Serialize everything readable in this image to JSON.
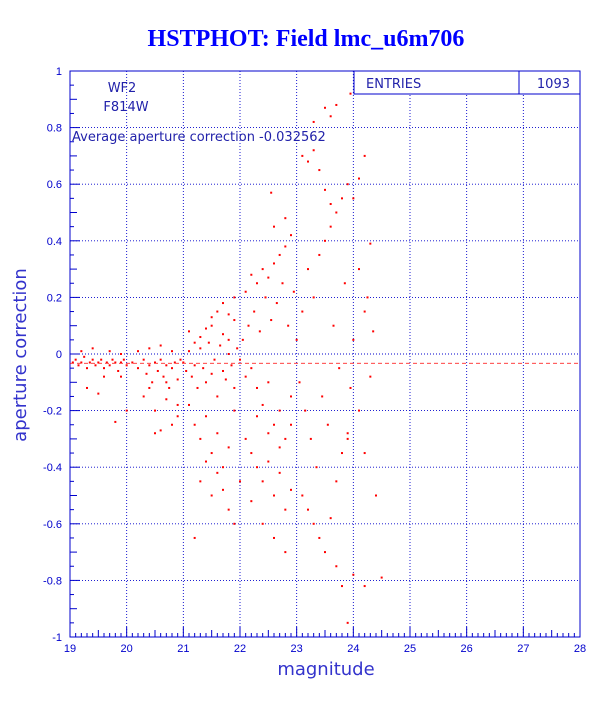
{
  "chart_data": {
    "type": "scatter",
    "title": "HSTPHOT: Field lmc_u6m706",
    "xlabel": "magnitude",
    "ylabel": "aperture correction",
    "xlim": [
      19,
      28
    ],
    "ylim": [
      -1,
      1
    ],
    "x_ticks": [
      "19",
      "20",
      "21",
      "22",
      "23",
      "24",
      "25",
      "26",
      "27",
      "28"
    ],
    "y_ticks": [
      "-1",
      "-0.8",
      "-0.6",
      "-0.4",
      "-0.2",
      "0",
      "0.2",
      "0.4",
      "0.6",
      "0.8",
      "1"
    ],
    "grid": true,
    "point_color": "#ff0000",
    "axis_color": "#0000cc",
    "title_color": "#0000ff",
    "average_line": -0.032562,
    "annotations": {
      "camera": "WF2",
      "filter": "F814W",
      "average_text": "Average aperture correction -0.032562"
    },
    "stats_box": {
      "label": "ENTRIES",
      "value": "1093"
    },
    "points": [
      [
        19.05,
        -0.03
      ],
      [
        19.1,
        -0.02
      ],
      [
        19.15,
        -0.04
      ],
      [
        19.2,
        -0.03
      ],
      [
        19.25,
        -0.01
      ],
      [
        19.3,
        -0.05
      ],
      [
        19.35,
        -0.03
      ],
      [
        19.4,
        -0.02
      ],
      [
        19.45,
        -0.04
      ],
      [
        19.5,
        -0.03
      ],
      [
        19.55,
        -0.02
      ],
      [
        19.6,
        -0.05
      ],
      [
        19.65,
        -0.03
      ],
      [
        19.7,
        -0.04
      ],
      [
        19.75,
        -0.02
      ],
      [
        19.8,
        -0.03
      ],
      [
        19.85,
        -0.06
      ],
      [
        19.9,
        -0.03
      ],
      [
        19.95,
        -0.02
      ],
      [
        20.0,
        -0.04
      ],
      [
        19.3,
        -0.12
      ],
      [
        19.5,
        -0.14
      ],
      [
        19.6,
        -0.08
      ],
      [
        19.8,
        -0.24
      ],
      [
        19.9,
        -0.08
      ],
      [
        20.0,
        -0.2
      ],
      [
        19.2,
        0.01
      ],
      [
        19.4,
        0.02
      ],
      [
        19.7,
        0.01
      ],
      [
        19.9,
        0.0
      ],
      [
        20.1,
        -0.03
      ],
      [
        20.2,
        -0.05
      ],
      [
        20.3,
        -0.02
      ],
      [
        20.35,
        -0.07
      ],
      [
        20.4,
        -0.04
      ],
      [
        20.45,
        -0.1
      ],
      [
        20.5,
        -0.03
      ],
      [
        20.55,
        -0.06
      ],
      [
        20.6,
        -0.02
      ],
      [
        20.65,
        -0.08
      ],
      [
        20.7,
        -0.04
      ],
      [
        20.75,
        -0.12
      ],
      [
        20.8,
        -0.05
      ],
      [
        20.85,
        -0.03
      ],
      [
        20.9,
        -0.09
      ],
      [
        20.95,
        -0.02
      ],
      [
        20.2,
        0.01
      ],
      [
        20.4,
        0.02
      ],
      [
        20.6,
        0.03
      ],
      [
        20.8,
        0.01
      ],
      [
        20.3,
        -0.15
      ],
      [
        20.5,
        -0.2
      ],
      [
        20.6,
        -0.27
      ],
      [
        20.7,
        -0.16
      ],
      [
        20.8,
        -0.25
      ],
      [
        20.9,
        -0.22
      ],
      [
        20.5,
        -0.28
      ],
      [
        20.4,
        -0.12
      ],
      [
        20.7,
        -0.1
      ],
      [
        20.9,
        -0.18
      ],
      [
        21.0,
        -0.03
      ],
      [
        21.05,
        -0.06
      ],
      [
        21.1,
        0.01
      ],
      [
        21.15,
        -0.08
      ],
      [
        21.2,
        -0.04
      ],
      [
        21.25,
        -0.12
      ],
      [
        21.3,
        0.02
      ],
      [
        21.35,
        -0.05
      ],
      [
        21.4,
        -0.1
      ],
      [
        21.45,
        0.04
      ],
      [
        21.5,
        -0.07
      ],
      [
        21.55,
        -0.02
      ],
      [
        21.6,
        -0.15
      ],
      [
        21.65,
        0.03
      ],
      [
        21.7,
        -0.06
      ],
      [
        21.75,
        -0.09
      ],
      [
        21.8,
        0.0
      ],
      [
        21.85,
        -0.04
      ],
      [
        21.9,
        -0.12
      ],
      [
        21.95,
        0.02
      ],
      [
        21.1,
        -0.18
      ],
      [
        21.2,
        -0.25
      ],
      [
        21.3,
        -0.3
      ],
      [
        21.4,
        -0.22
      ],
      [
        21.5,
        -0.35
      ],
      [
        21.6,
        -0.28
      ],
      [
        21.7,
        -0.4
      ],
      [
        21.8,
        -0.33
      ],
      [
        21.9,
        -0.2
      ],
      [
        21.3,
        -0.45
      ],
      [
        21.5,
        -0.5
      ],
      [
        21.7,
        -0.48
      ],
      [
        21.8,
        -0.55
      ],
      [
        21.9,
        -0.6
      ],
      [
        21.2,
        -0.65
      ],
      [
        21.6,
        -0.42
      ],
      [
        21.4,
        -0.38
      ],
      [
        21.1,
        0.08
      ],
      [
        21.3,
        0.06
      ],
      [
        21.5,
        0.1
      ],
      [
        21.7,
        0.07
      ],
      [
        21.9,
        0.12
      ],
      [
        21.6,
        0.15
      ],
      [
        21.8,
        0.05
      ],
      [
        21.4,
        0.09
      ],
      [
        21.2,
        0.04
      ],
      [
        21.7,
        0.18
      ],
      [
        21.9,
        0.2
      ],
      [
        21.8,
        0.14
      ],
      [
        21.5,
        0.13
      ],
      [
        22.0,
        -0.02
      ],
      [
        22.05,
        0.05
      ],
      [
        22.1,
        -0.08
      ],
      [
        22.15,
        0.1
      ],
      [
        22.2,
        -0.05
      ],
      [
        22.25,
        0.15
      ],
      [
        22.3,
        -0.12
      ],
      [
        22.35,
        0.08
      ],
      [
        22.4,
        -0.18
      ],
      [
        22.45,
        0.2
      ],
      [
        22.5,
        -0.1
      ],
      [
        22.55,
        0.12
      ],
      [
        22.6,
        -0.25
      ],
      [
        22.65,
        0.18
      ],
      [
        22.7,
        -0.2
      ],
      [
        22.75,
        0.25
      ],
      [
        22.8,
        -0.3
      ],
      [
        22.85,
        0.1
      ],
      [
        22.9,
        -0.15
      ],
      [
        22.95,
        0.22
      ],
      [
        22.1,
        0.22
      ],
      [
        22.2,
        0.28
      ],
      [
        22.3,
        0.25
      ],
      [
        22.4,
        0.3
      ],
      [
        22.5,
        0.27
      ],
      [
        22.6,
        0.32
      ],
      [
        22.7,
        0.35
      ],
      [
        22.8,
        0.38
      ],
      [
        22.9,
        0.42
      ],
      [
        22.6,
        0.45
      ],
      [
        22.2,
        -0.35
      ],
      [
        22.3,
        -0.4
      ],
      [
        22.4,
        -0.45
      ],
      [
        22.5,
        -0.38
      ],
      [
        22.6,
        -0.5
      ],
      [
        22.7,
        -0.42
      ],
      [
        22.8,
        -0.55
      ],
      [
        22.9,
        -0.48
      ],
      [
        22.4,
        -0.6
      ],
      [
        22.6,
        -0.65
      ],
      [
        22.8,
        -0.7
      ],
      [
        22.5,
        -0.28
      ],
      [
        22.3,
        -0.22
      ],
      [
        22.1,
        -0.3
      ],
      [
        22.7,
        -0.33
      ],
      [
        22.9,
        -0.25
      ],
      [
        22.0,
        -0.45
      ],
      [
        22.2,
        -0.52
      ],
      [
        22.8,
        0.48
      ],
      [
        22.55,
        0.57
      ],
      [
        23.0,
        0.05
      ],
      [
        23.05,
        -0.1
      ],
      [
        23.1,
        0.15
      ],
      [
        23.15,
        -0.2
      ],
      [
        23.2,
        0.3
      ],
      [
        23.25,
        -0.3
      ],
      [
        23.3,
        0.2
      ],
      [
        23.35,
        -0.4
      ],
      [
        23.4,
        0.35
      ],
      [
        23.45,
        -0.15
      ],
      [
        23.5,
        0.4
      ],
      [
        23.55,
        -0.25
      ],
      [
        23.6,
        0.45
      ],
      [
        23.65,
        0.1
      ],
      [
        23.7,
        0.5
      ],
      [
        23.75,
        -0.05
      ],
      [
        23.8,
        0.55
      ],
      [
        23.85,
        0.25
      ],
      [
        23.9,
        0.6
      ],
      [
        23.95,
        -0.12
      ],
      [
        23.1,
        0.7
      ],
      [
        23.2,
        0.68
      ],
      [
        23.3,
        0.72
      ],
      [
        23.4,
        0.65
      ],
      [
        23.5,
        0.58
      ],
      [
        23.6,
        0.53
      ],
      [
        23.3,
        0.82
      ],
      [
        23.6,
        0.84
      ],
      [
        23.7,
        0.88
      ],
      [
        23.5,
        0.87
      ],
      [
        23.1,
        -0.5
      ],
      [
        23.2,
        -0.55
      ],
      [
        23.3,
        -0.6
      ],
      [
        23.4,
        -0.65
      ],
      [
        23.5,
        -0.7
      ],
      [
        23.6,
        -0.58
      ],
      [
        23.7,
        -0.45
      ],
      [
        23.8,
        -0.35
      ],
      [
        23.9,
        -0.3
      ],
      [
        23.9,
        -0.28
      ],
      [
        24.0,
        0.55
      ],
      [
        24.2,
        0.7
      ],
      [
        24.3,
        0.39
      ],
      [
        24.35,
        0.08
      ],
      [
        24.3,
        -0.08
      ],
      [
        24.4,
        -0.5
      ],
      [
        24.0,
        -0.78
      ],
      [
        24.2,
        -0.82
      ],
      [
        24.5,
        -0.79
      ],
      [
        23.9,
        -0.95
      ],
      [
        23.8,
        -0.82
      ],
      [
        23.7,
        -0.75
      ],
      [
        24.1,
        -0.2
      ],
      [
        24.0,
        0.05
      ],
      [
        24.1,
        0.3
      ],
      [
        24.2,
        0.15
      ],
      [
        23.95,
        0.92
      ],
      [
        24.1,
        0.62
      ],
      [
        24.2,
        -0.35
      ],
      [
        24.25,
        0.2
      ]
    ]
  }
}
